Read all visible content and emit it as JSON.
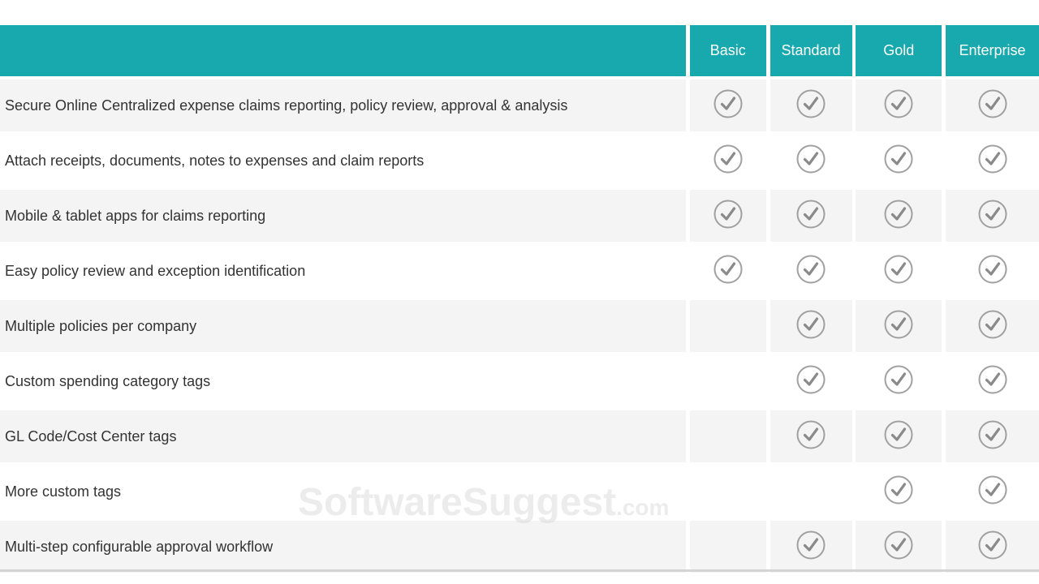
{
  "header": {
    "columns": [
      "",
      "Basic",
      "Standard",
      "Gold",
      "Enterprise"
    ]
  },
  "accent_color": "#17a9ad",
  "check_icon": "check-circle-icon",
  "rows": [
    {
      "feature": "Secure Online Centralized expense claims reporting, policy review, approval & analysis",
      "plans": [
        true,
        true,
        true,
        true
      ]
    },
    {
      "feature": "Attach receipts, documents, notes to expenses and claim reports",
      "plans": [
        true,
        true,
        true,
        true
      ]
    },
    {
      "feature": "Mobile & tablet apps for claims reporting",
      "plans": [
        true,
        true,
        true,
        true
      ]
    },
    {
      "feature": "Easy policy review and exception identification",
      "plans": [
        true,
        true,
        true,
        true
      ]
    },
    {
      "feature": "Multiple policies per company",
      "plans": [
        false,
        true,
        true,
        true
      ]
    },
    {
      "feature": "Custom spending category tags",
      "plans": [
        false,
        true,
        true,
        true
      ]
    },
    {
      "feature": "GL Code/Cost Center tags",
      "plans": [
        false,
        true,
        true,
        true
      ]
    },
    {
      "feature": "More custom tags",
      "plans": [
        false,
        false,
        true,
        true
      ]
    },
    {
      "feature": "Multi-step configurable approval workflow",
      "plans": [
        false,
        true,
        true,
        true
      ]
    }
  ],
  "watermark": {
    "main": "SoftwareSuggest",
    "suffix": ".com"
  }
}
